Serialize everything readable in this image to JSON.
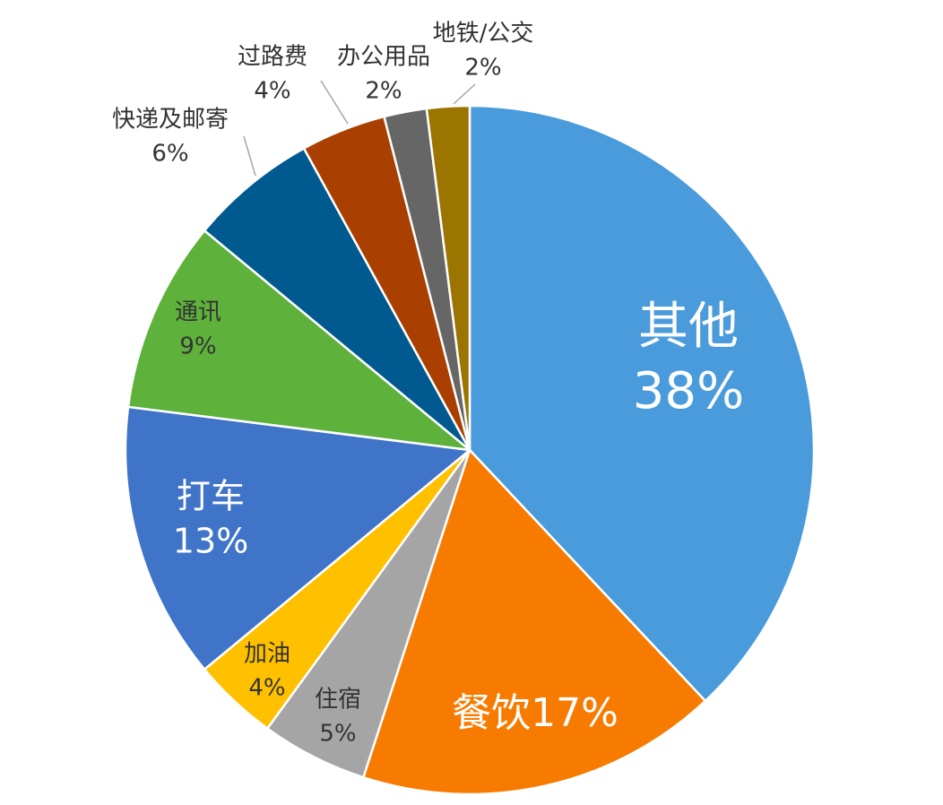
{
  "chart_data": {
    "type": "pie",
    "title": "",
    "start_angle_deg": 0,
    "direction": "clockwise",
    "slices": [
      {
        "label": "其他",
        "value": 38,
        "value_label": "38%",
        "color": "#4a9bdb",
        "text_color": "#ffffff"
      },
      {
        "label": "餐饮",
        "value": 17,
        "value_label": "17%",
        "color": "#f77b00",
        "text_color": "#ffffff",
        "inline": true
      },
      {
        "label": "住宿",
        "value": 5,
        "value_label": "5%",
        "color": "#a5a5a5",
        "text_color": "#333333"
      },
      {
        "label": "加油",
        "value": 4,
        "value_label": "4%",
        "color": "#ffc000",
        "text_color": "#333333"
      },
      {
        "label": "打车",
        "value": 13,
        "value_label": "13%",
        "color": "#3f74c8",
        "text_color": "#ffffff"
      },
      {
        "label": "通讯",
        "value": 9,
        "value_label": "9%",
        "color": "#5eb13a",
        "text_color": "#333333"
      },
      {
        "label": "快递及邮寄",
        "value": 6,
        "value_label": "6%",
        "color": "#005a8f",
        "text_color": "#333333",
        "outside": true
      },
      {
        "label": "过路费",
        "value": 4,
        "value_label": "4%",
        "color": "#a93f00",
        "text_color": "#333333",
        "outside": true
      },
      {
        "label": "办公用品",
        "value": 2,
        "value_label": "2%",
        "color": "#666666",
        "text_color": "#333333",
        "outside": true
      },
      {
        "label": "地铁/公交",
        "value": 2,
        "value_label": "2%",
        "color": "#9b7500",
        "text_color": "#333333",
        "outside": true
      }
    ],
    "legend": "none"
  }
}
